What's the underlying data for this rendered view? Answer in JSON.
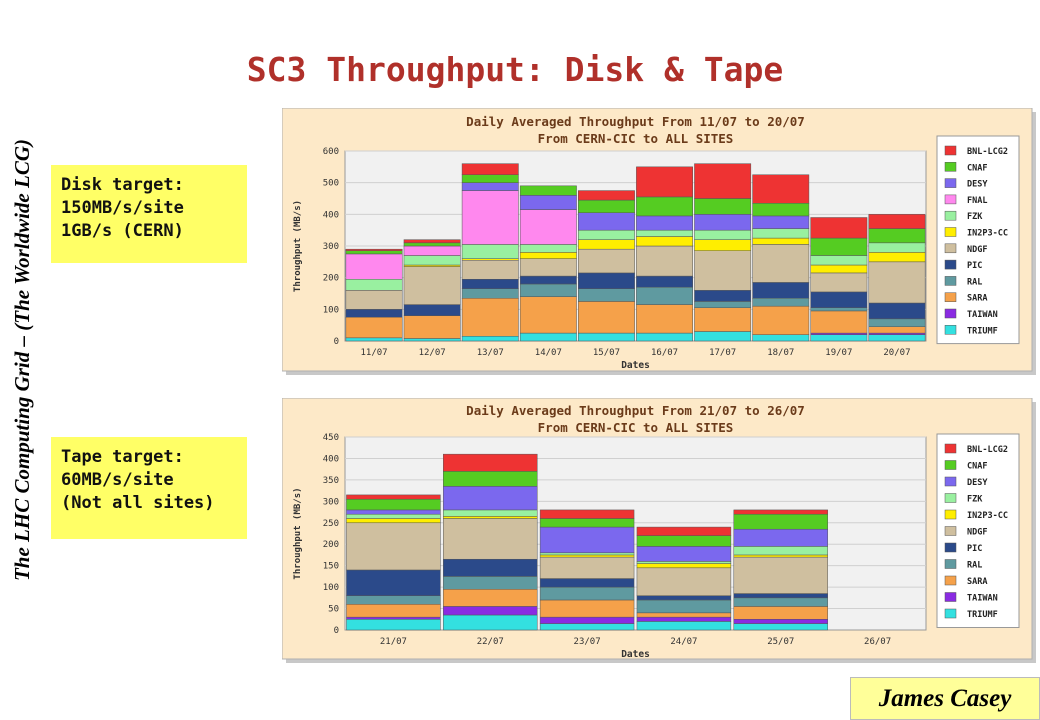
{
  "slide": {
    "side_title": "The LHC Computing Grid – (The Worldwide LCG)",
    "title": "SC3 Throughput: Disk & Tape",
    "disk_note": [
      "Disk target:",
      "150MB/s/site",
      "1GB/s (CERN)"
    ],
    "tape_note": [
      "Tape target:",
      "60MB/s/site",
      "(Not all sites)"
    ],
    "author": "James Casey"
  },
  "chart_data": [
    {
      "type": "bar",
      "stacked": true,
      "title": "Daily Averaged Throughput From 11/07 to 20/07",
      "subtitle": "From CERN-CIC to ALL SITES",
      "xlabel": "Dates",
      "ylabel": "Throughput (MB/s)",
      "ylim": [
        0,
        600
      ],
      "yticks": [
        0,
        100,
        200,
        300,
        400,
        500,
        600
      ],
      "grid": true,
      "legend_position": "right",
      "categories": [
        "11/07",
        "12/07",
        "13/07",
        "14/07",
        "15/07",
        "16/07",
        "17/07",
        "18/07",
        "19/07",
        "20/07"
      ],
      "series": [
        {
          "name": "TRIUMF",
          "color": "#33e0e0",
          "values": [
            10,
            8,
            15,
            25,
            25,
            25,
            30,
            20,
            20,
            20
          ]
        },
        {
          "name": "TAIWAN",
          "color": "#8a2be2",
          "values": [
            0,
            0,
            0,
            0,
            0,
            0,
            0,
            0,
            5,
            5
          ]
        },
        {
          "name": "SARA",
          "color": "#f5a14a",
          "values": [
            65,
            72,
            120,
            115,
            100,
            90,
            75,
            90,
            70,
            20
          ]
        },
        {
          "name": "RAL",
          "color": "#5f9aa0",
          "values": [
            0,
            0,
            30,
            40,
            40,
            55,
            20,
            25,
            10,
            25
          ]
        },
        {
          "name": "PIC",
          "color": "#2b4a8a",
          "values": [
            25,
            35,
            30,
            25,
            50,
            35,
            35,
            50,
            50,
            50
          ]
        },
        {
          "name": "NDGF",
          "color": "#cfbf9f",
          "values": [
            60,
            120,
            60,
            55,
            75,
            95,
            125,
            120,
            60,
            130
          ]
        },
        {
          "name": "IN2P3-CC",
          "color": "#ffee00",
          "values": [
            0,
            5,
            5,
            20,
            30,
            30,
            35,
            20,
            25,
            30
          ]
        },
        {
          "name": "FZK",
          "color": "#99f0a0",
          "values": [
            35,
            30,
            45,
            25,
            30,
            20,
            30,
            30,
            30,
            30
          ]
        },
        {
          "name": "FNAL",
          "color": "#ff88ee",
          "values": [
            80,
            30,
            170,
            110,
            0,
            0,
            0,
            0,
            0,
            0
          ]
        },
        {
          "name": "DESY",
          "color": "#7b68ee",
          "values": [
            0,
            0,
            25,
            45,
            55,
            45,
            50,
            40,
            0,
            0
          ]
        },
        {
          "name": "CNAF",
          "color": "#55cc22",
          "values": [
            10,
            10,
            25,
            30,
            40,
            60,
            50,
            40,
            55,
            45
          ]
        },
        {
          "name": "BNL-LCG2",
          "color": "#ee3333",
          "values": [
            5,
            10,
            35,
            0,
            30,
            95,
            110,
            90,
            65,
            45
          ]
        }
      ]
    },
    {
      "type": "bar",
      "stacked": true,
      "title": "Daily Averaged Throughput From 21/07 to 26/07",
      "subtitle": "From CERN-CIC to ALL SITES",
      "xlabel": "Dates",
      "ylabel": "Throughput (MB/s)",
      "ylim": [
        0,
        450
      ],
      "yticks": [
        0,
        50,
        100,
        150,
        200,
        250,
        300,
        350,
        400,
        450
      ],
      "grid": true,
      "legend_position": "right",
      "categories": [
        "21/07",
        "22/07",
        "23/07",
        "24/07",
        "25/07",
        "26/07"
      ],
      "series": [
        {
          "name": "TRIUMF",
          "color": "#33e0e0",
          "values": [
            25,
            35,
            15,
            20,
            15,
            0
          ]
        },
        {
          "name": "TAIWAN",
          "color": "#8a2be2",
          "values": [
            5,
            20,
            15,
            10,
            10,
            0
          ]
        },
        {
          "name": "SARA",
          "color": "#f5a14a",
          "values": [
            30,
            40,
            40,
            10,
            30,
            0
          ]
        },
        {
          "name": "RAL",
          "color": "#5f9aa0",
          "values": [
            20,
            30,
            30,
            30,
            20,
            0
          ]
        },
        {
          "name": "PIC",
          "color": "#2b4a8a",
          "values": [
            60,
            40,
            20,
            10,
            10,
            0
          ]
        },
        {
          "name": "NDGF",
          "color": "#cfbf9f",
          "values": [
            110,
            95,
            50,
            65,
            85,
            0
          ]
        },
        {
          "name": "IN2P3-CC",
          "color": "#ffee00",
          "values": [
            10,
            5,
            5,
            10,
            5,
            0
          ]
        },
        {
          "name": "FZK",
          "color": "#99f0a0",
          "values": [
            10,
            15,
            5,
            5,
            20,
            0
          ]
        },
        {
          "name": "DESY",
          "color": "#7b68ee",
          "values": [
            10,
            55,
            60,
            35,
            40,
            0
          ]
        },
        {
          "name": "CNAF",
          "color": "#55cc22",
          "values": [
            25,
            35,
            20,
            25,
            35,
            0
          ]
        },
        {
          "name": "BNL-LCG2",
          "color": "#ee3333",
          "values": [
            10,
            40,
            20,
            20,
            10,
            0
          ]
        }
      ]
    }
  ]
}
